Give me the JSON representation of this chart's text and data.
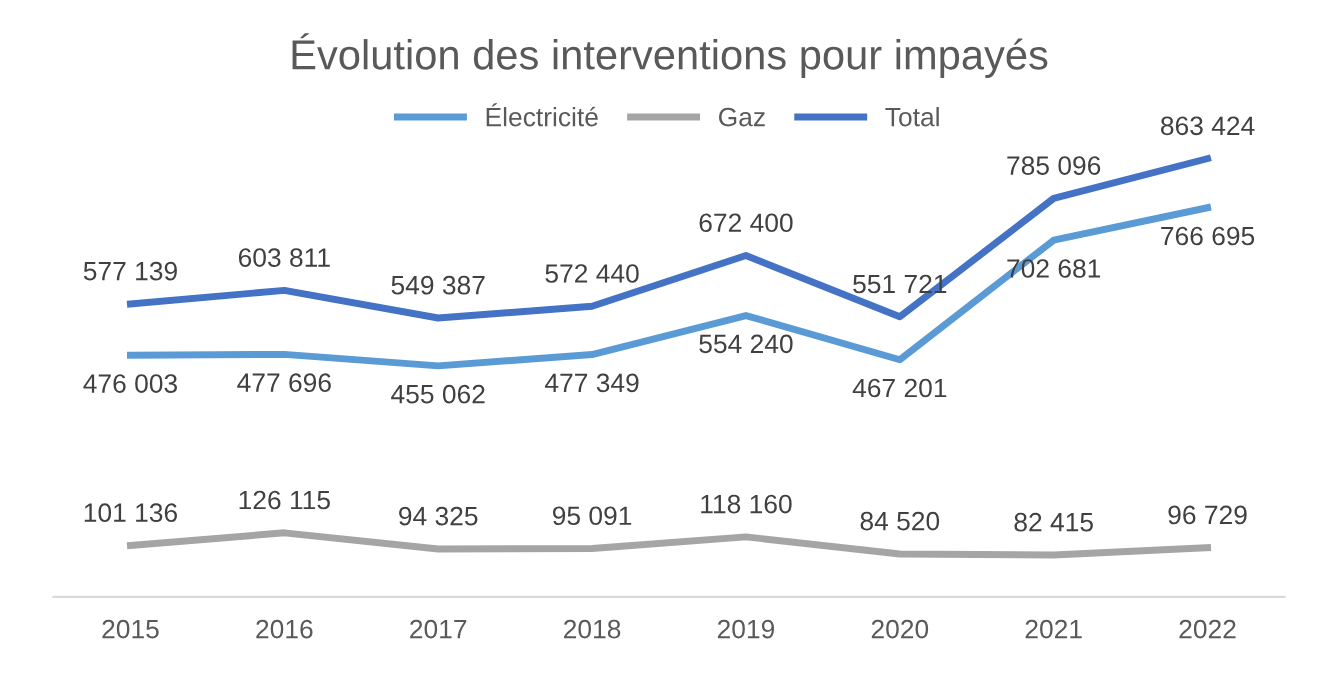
{
  "chart_data": {
    "type": "line",
    "title": "Évolution des interventions pour impayés",
    "categories": [
      "2015",
      "2016",
      "2017",
      "2018",
      "2019",
      "2020",
      "2021",
      "2022"
    ],
    "series": [
      {
        "name": "Électricité",
        "color": "#5b9bd5",
        "values": [
          476003,
          477696,
          455062,
          477349,
          554240,
          467201,
          702681,
          766695
        ],
        "value_labels": [
          "476 003",
          "477 696",
          "455 062",
          "477 349",
          "554 240",
          "467 201",
          "702 681",
          "766 695"
        ]
      },
      {
        "name": "Gaz",
        "color": "#a5a5a5",
        "values": [
          101136,
          126115,
          94325,
          95091,
          118160,
          84520,
          82415,
          96729
        ],
        "value_labels": [
          "101 136",
          "126 115",
          "94 325",
          "95 091",
          "118 160",
          "84 520",
          "82 415",
          "96 729"
        ]
      },
      {
        "name": "Total",
        "color": "#4472c4",
        "values": [
          577139,
          603811,
          549387,
          572440,
          672400,
          551721,
          785096,
          863424
        ],
        "value_labels": [
          "577 139",
          "603 811",
          "549 387",
          "572 440",
          "672 400",
          "551 721",
          "785 096",
          "863 424"
        ]
      }
    ],
    "legend": "top",
    "grid": false,
    "marker": "none",
    "line_style": "solid",
    "tick_labels": "x"
  }
}
